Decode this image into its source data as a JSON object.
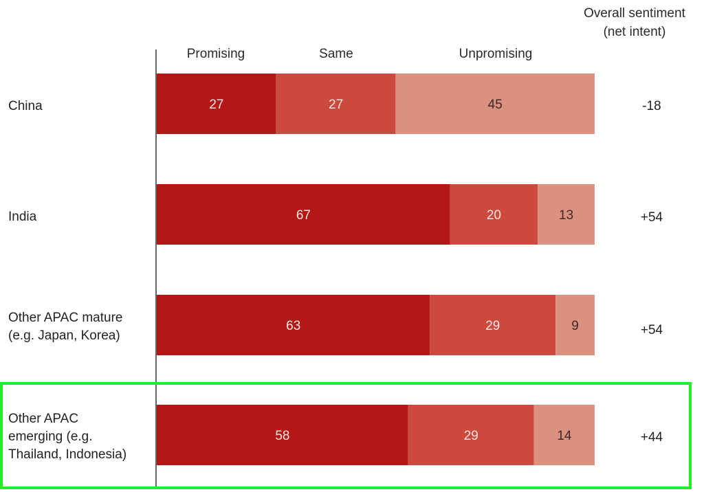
{
  "chart_data": {
    "type": "bar",
    "orientation": "horizontal",
    "stacked": true,
    "title": "",
    "overall_header": [
      "Overall sentiment",
      "(net intent)"
    ],
    "legend": [
      "Promising",
      "Same",
      "Unpromising"
    ],
    "categories": [
      [
        "China"
      ],
      [
        "India"
      ],
      [
        "Other APAC mature",
        "(e.g. Japan, Korea)"
      ],
      [
        "Other APAC emerging (e.g.",
        "Thailand, Indonesia)"
      ]
    ],
    "series": [
      {
        "name": "Promising",
        "color": "#b31817",
        "text_color": "#ffe6e1",
        "values": [
          27,
          67,
          63,
          58
        ]
      },
      {
        "name": "Same",
        "color": "#cc4a3d",
        "text_color": "#ffe6e1",
        "values": [
          27,
          20,
          29,
          29
        ]
      },
      {
        "name": "Unpromising",
        "color": "#dc9080",
        "text_color": "#3a2a28",
        "values": [
          45,
          13,
          9,
          14
        ]
      }
    ],
    "net_intent": [
      "-18",
      "+54",
      "+54",
      "+44"
    ],
    "highlighted_category_index": 3,
    "highlight_color": "#22ee22",
    "xlim": [
      0,
      100
    ],
    "grid": false
  }
}
